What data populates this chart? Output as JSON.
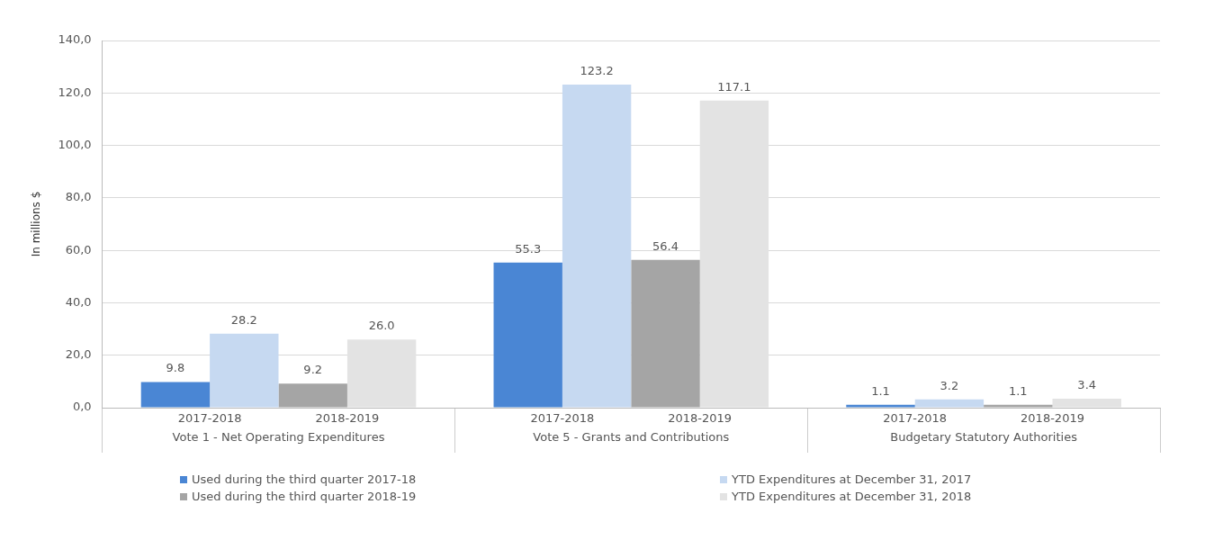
{
  "chart_data": {
    "type": "bar",
    "ylabel": "In millions $",
    "categories": [
      "Vote 1 - Net Operating Expenditures",
      "Vote 5 - Grants and Contributions",
      "Budgetary Statutory Authorities"
    ],
    "series": [
      {
        "name": "Used during the third quarter 2017-18",
        "color": "#4a86d4",
        "values": [
          9.8,
          55.3,
          1.1
        ],
        "value_labels": [
          "9.8",
          "55.3",
          "1.1"
        ]
      },
      {
        "name": "YTD Expenditures at December 31, 2017",
        "color": "#c6d9f1",
        "values": [
          28.2,
          123.2,
          3.2
        ],
        "value_labels": [
          "28.2",
          "123.2",
          "3.2"
        ]
      },
      {
        "name": "Used during the third quarter 2018-19",
        "color": "#a5a5a5",
        "values": [
          9.2,
          56.4,
          1.1
        ],
        "value_labels": [
          "9.2",
          "56.4",
          "1.1"
        ]
      },
      {
        "name": "YTD Expenditures at December 31, 2018",
        "color": "#e3e3e3",
        "values": [
          26.0,
          117.1,
          3.4
        ],
        "value_labels": [
          "26.0",
          "117.1",
          "3.4"
        ]
      }
    ],
    "annotations": [
      "2017-2018",
      "2018-2019",
      "2017-2018",
      "2018-2019",
      "2017-2018",
      "2018-2019"
    ],
    "ylim": [
      0,
      140
    ],
    "yticks": [
      {
        "value": 0,
        "label": "0,0"
      },
      {
        "value": 20,
        "label": "20,0"
      },
      {
        "value": 40,
        "label": "40,0"
      },
      {
        "value": 60,
        "label": "60,0"
      },
      {
        "value": 80,
        "label": "80,0"
      },
      {
        "value": 100,
        "label": "100,0"
      },
      {
        "value": 120,
        "label": "120,0"
      },
      {
        "value": 140,
        "label": "140,0"
      }
    ],
    "grid": "y",
    "legend": "bottom"
  }
}
